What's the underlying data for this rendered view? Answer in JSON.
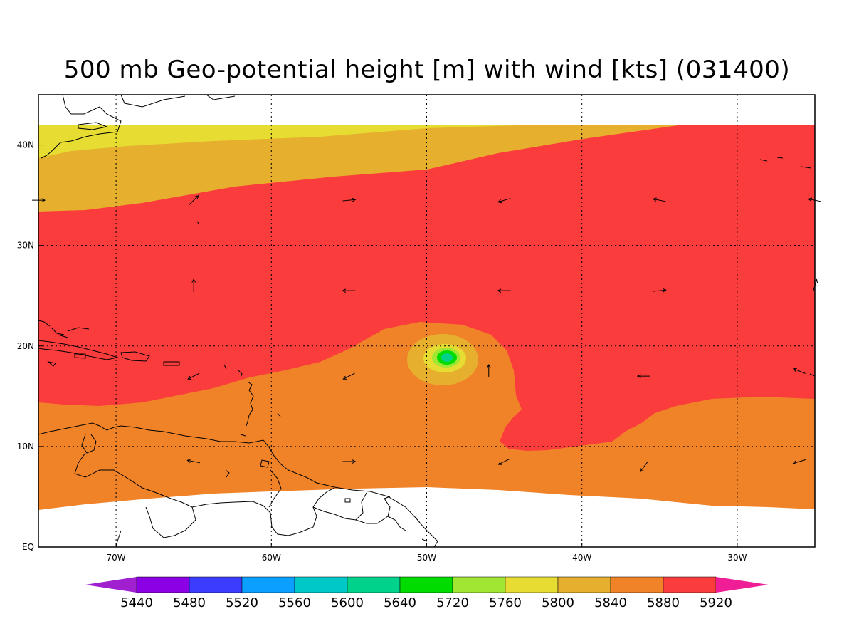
{
  "title": "500 mb Geo-potential height [m] with wind [kts] (031400)",
  "map": {
    "lon_range": [
      -75,
      -25
    ],
    "lat_range": [
      0,
      45
    ],
    "lon_ticks": [
      {
        "value": -70,
        "label": "70W"
      },
      {
        "value": -60,
        "label": "60W"
      },
      {
        "value": -50,
        "label": "50W"
      },
      {
        "value": -40,
        "label": "40W"
      },
      {
        "value": -30,
        "label": "30W"
      }
    ],
    "lat_ticks": [
      {
        "value": 0,
        "label": "EQ"
      },
      {
        "value": 10,
        "label": "10N"
      },
      {
        "value": 20,
        "label": "20N"
      },
      {
        "value": 30,
        "label": "30N"
      },
      {
        "value": 40,
        "label": "40N"
      }
    ],
    "wind_vectors": [
      {
        "lon": -75,
        "lat": 34.5,
        "u": 1,
        "v": 0
      },
      {
        "lon": -65,
        "lat": 34.5,
        "u": 1,
        "v": 1
      },
      {
        "lon": -55,
        "lat": 34.5,
        "u": 1,
        "v": 0.1
      },
      {
        "lon": -45,
        "lat": 34.5,
        "u": -1,
        "v": -0.3
      },
      {
        "lon": -35,
        "lat": 34.5,
        "u": -1,
        "v": 0.2
      },
      {
        "lon": -25,
        "lat": 34.5,
        "u": -1,
        "v": 0.2
      },
      {
        "lon": -65,
        "lat": 26,
        "u": 0,
        "v": 1
      },
      {
        "lon": -55,
        "lat": 25.5,
        "u": -1,
        "v": 0
      },
      {
        "lon": -45,
        "lat": 25.5,
        "u": -1,
        "v": 0
      },
      {
        "lon": -35,
        "lat": 25.5,
        "u": 1,
        "v": 0.1
      },
      {
        "lon": -25,
        "lat": 26,
        "u": 0.3,
        "v": 1
      },
      {
        "lon": -65,
        "lat": 17,
        "u": -1,
        "v": -0.5
      },
      {
        "lon": -55,
        "lat": 17,
        "u": -1,
        "v": -0.5
      },
      {
        "lon": -46,
        "lat": 17.5,
        "u": 0,
        "v": 1
      },
      {
        "lon": -36,
        "lat": 17,
        "u": -1,
        "v": 0
      },
      {
        "lon": -26,
        "lat": 17.5,
        "u": -1,
        "v": 0.4
      },
      {
        "lon": -65,
        "lat": 8.5,
        "u": -1,
        "v": 0.2
      },
      {
        "lon": -55,
        "lat": 8.5,
        "u": 1,
        "v": 0
      },
      {
        "lon": -45,
        "lat": 8.5,
        "u": -1,
        "v": -0.5
      },
      {
        "lon": -36,
        "lat": 8,
        "u": -0.6,
        "v": -0.8
      },
      {
        "lon": -26,
        "lat": 8.5,
        "u": -1,
        "v": -0.3
      }
    ]
  },
  "colorbar": {
    "labels": [
      "5440",
      "5480",
      "5520",
      "5560",
      "5600",
      "5640",
      "5720",
      "5760",
      "5800",
      "5840",
      "5880",
      "5920"
    ],
    "colors": [
      "#a020d0",
      "#8c00e6",
      "#3c3cff",
      "#0ba0ff",
      "#00c8c8",
      "#00d28c",
      "#00dc00",
      "#a0e632",
      "#e6dc32",
      "#e6af2d",
      "#f08228",
      "#fa3c3c",
      "#f01e96"
    ]
  },
  "fill_colors": {
    "c5880": "#f08228",
    "c5920": "#fa3c3c",
    "c5840": "#e6af2d",
    "c5800": "#e6dc32",
    "c5760": "#a0e632",
    "c5720": "#00dc00",
    "c5640": "#00d28c"
  }
}
